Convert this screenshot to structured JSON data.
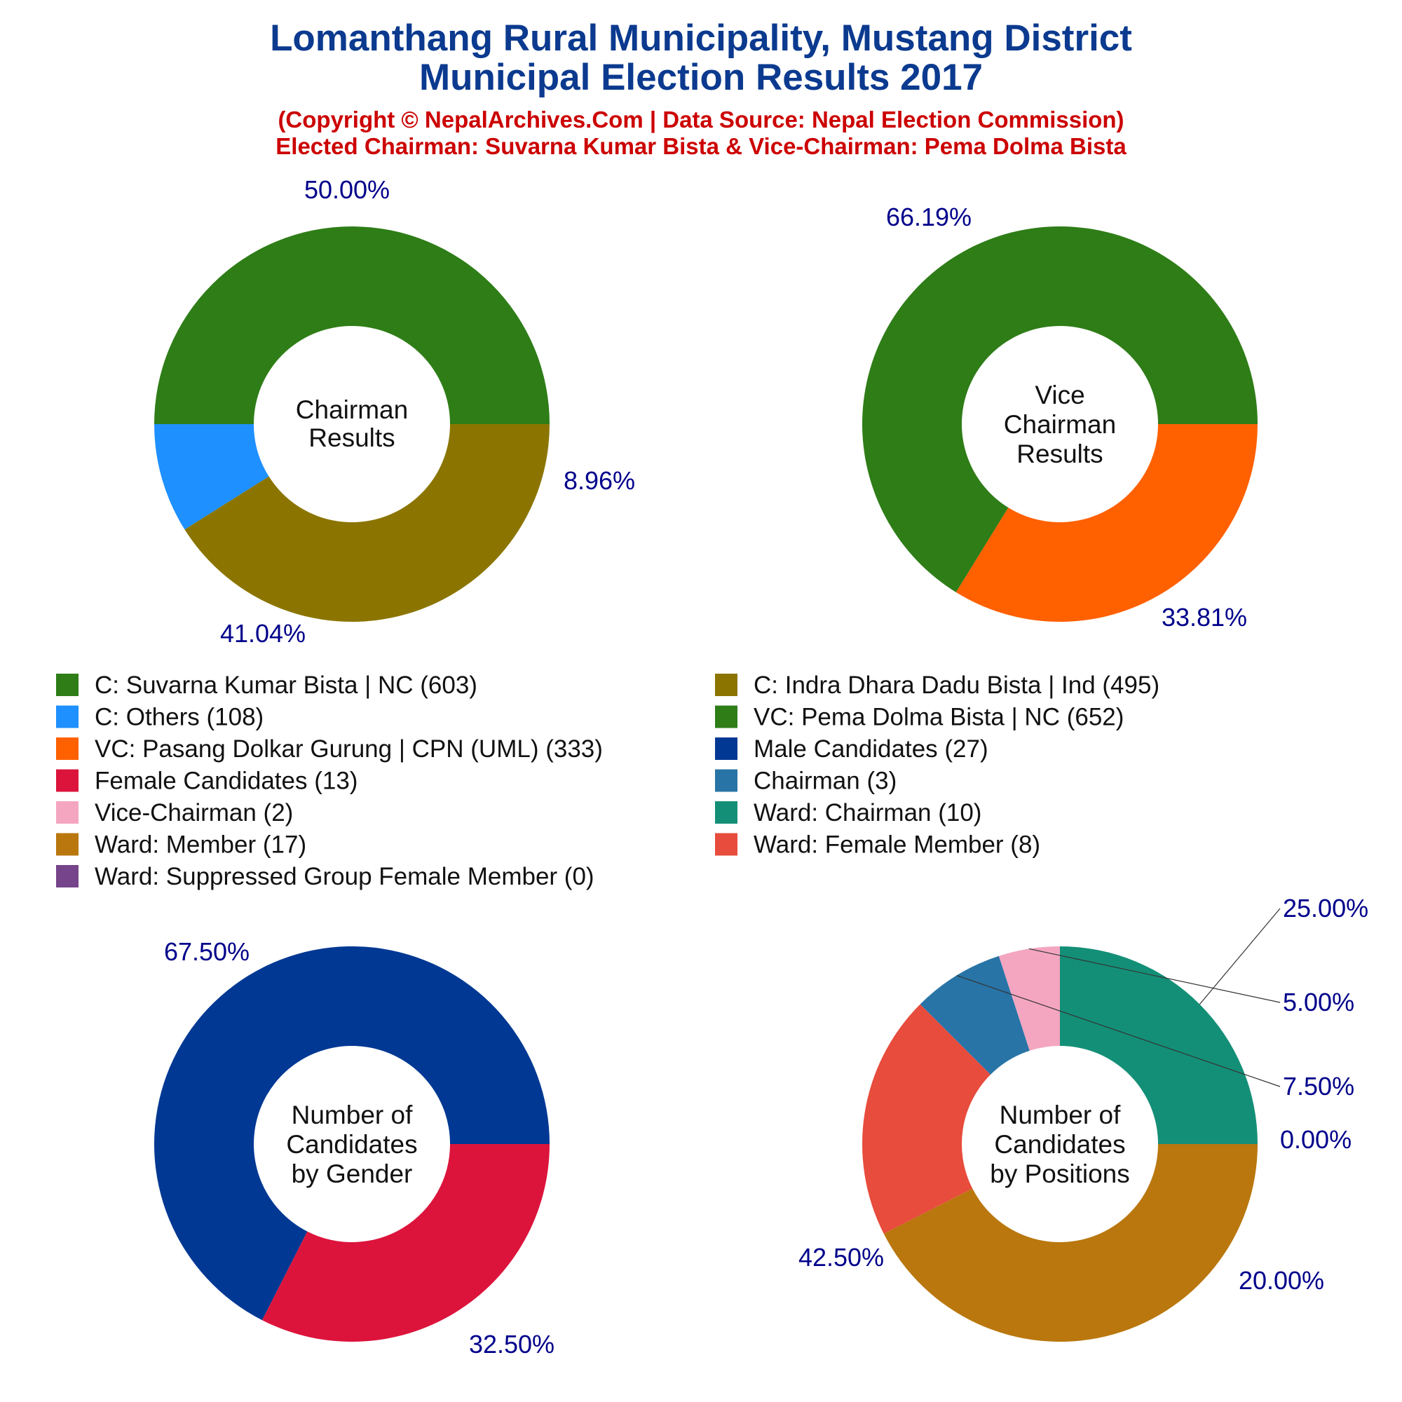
{
  "title_line1": "Lomanthang Rural Municipality, Mustang District",
  "title_line2": "Municipal Election Results 2017",
  "subtitle_line1": "(Copyright © NepalArchives.Com | Data Source: Nepal Election Commission)",
  "subtitle_line2": "Elected Chairman: Suvarna Kumar Bista & Vice-Chairman: Pema Dolma Bista",
  "legend": [
    {
      "label": "C: Suvarna Kumar Bista | NC (603)",
      "color": "#2e7d17"
    },
    {
      "label": "C: Indra Dhara Dadu Bista | Ind (495)",
      "color": "#8b7500"
    },
    {
      "label": "C: Others (108)",
      "color": "#1e90ff"
    },
    {
      "label": "VC: Pema Dolma Bista | NC (652)",
      "color": "#2e7d17"
    },
    {
      "label": "VC: Pasang Dolkar Gurung | CPN (UML) (333)",
      "color": "#ff6000"
    },
    {
      "label": "Male Candidates (27)",
      "color": "#003893"
    },
    {
      "label": "Female Candidates (13)",
      "color": "#dc143c"
    },
    {
      "label": "Chairman (3)",
      "color": "#2874a6"
    },
    {
      "label": "Vice-Chairman (2)",
      "color": "#f4a6c0"
    },
    {
      "label": "Ward: Chairman (10)",
      "color": "#148f77"
    },
    {
      "label": "Ward: Member (17)",
      "color": "#b9770e"
    },
    {
      "label": "Ward: Female Member (8)",
      "color": "#e74c3c"
    },
    {
      "label": "Ward: Suppressed Group Female Member (0)",
      "color": "#76448a"
    }
  ],
  "chart_data": [
    {
      "type": "pie",
      "center_label": [
        "Chairman",
        "Results"
      ],
      "slices": [
        {
          "name": "C: Suvarna Kumar Bista | NC",
          "value": 603,
          "pct_label": "50.00%",
          "color": "#2e7d17"
        },
        {
          "name": "C: Others",
          "value": 108,
          "pct_label": "8.96%",
          "color": "#1e90ff"
        },
        {
          "name": "C: Indra Dhara Dadu Bista | Ind",
          "value": 495,
          "pct_label": "41.04%",
          "color": "#8b7500"
        }
      ]
    },
    {
      "type": "pie",
      "center_label": [
        "Vice",
        "Chairman",
        "Results"
      ],
      "slices": [
        {
          "name": "VC: Pema Dolma Bista | NC",
          "value": 652,
          "pct_label": "66.19%",
          "color": "#2e7d17"
        },
        {
          "name": "VC: Pasang Dolkar Gurung | CPN (UML)",
          "value": 333,
          "pct_label": "33.81%",
          "color": "#ff6000"
        }
      ]
    },
    {
      "type": "pie",
      "center_label": [
        "Number of",
        "Candidates",
        "by Gender"
      ],
      "slices": [
        {
          "name": "Male Candidates",
          "value": 27,
          "pct_label": "67.50%",
          "color": "#003893"
        },
        {
          "name": "Female Candidates",
          "value": 13,
          "pct_label": "32.50%",
          "color": "#dc143c"
        }
      ]
    },
    {
      "type": "pie",
      "center_label": [
        "Number of",
        "Candidates",
        "by Positions"
      ],
      "slices": [
        {
          "name": "Ward: Chairman",
          "value": 10,
          "pct_label": "25.00%",
          "color": "#148f77"
        },
        {
          "name": "Vice-Chairman",
          "value": 2,
          "pct_label": "5.00%",
          "color": "#f4a6c0"
        },
        {
          "name": "Chairman",
          "value": 3,
          "pct_label": "7.50%",
          "color": "#2874a6"
        },
        {
          "name": "Ward: Suppressed Group Female Member",
          "value": 0,
          "pct_label": "0.00%",
          "color": "#76448a"
        },
        {
          "name": "Ward: Female Member",
          "value": 8,
          "pct_label": "20.00%",
          "color": "#e74c3c"
        },
        {
          "name": "Ward: Member",
          "value": 17,
          "pct_label": "42.50%",
          "color": "#b9770e"
        }
      ]
    }
  ]
}
